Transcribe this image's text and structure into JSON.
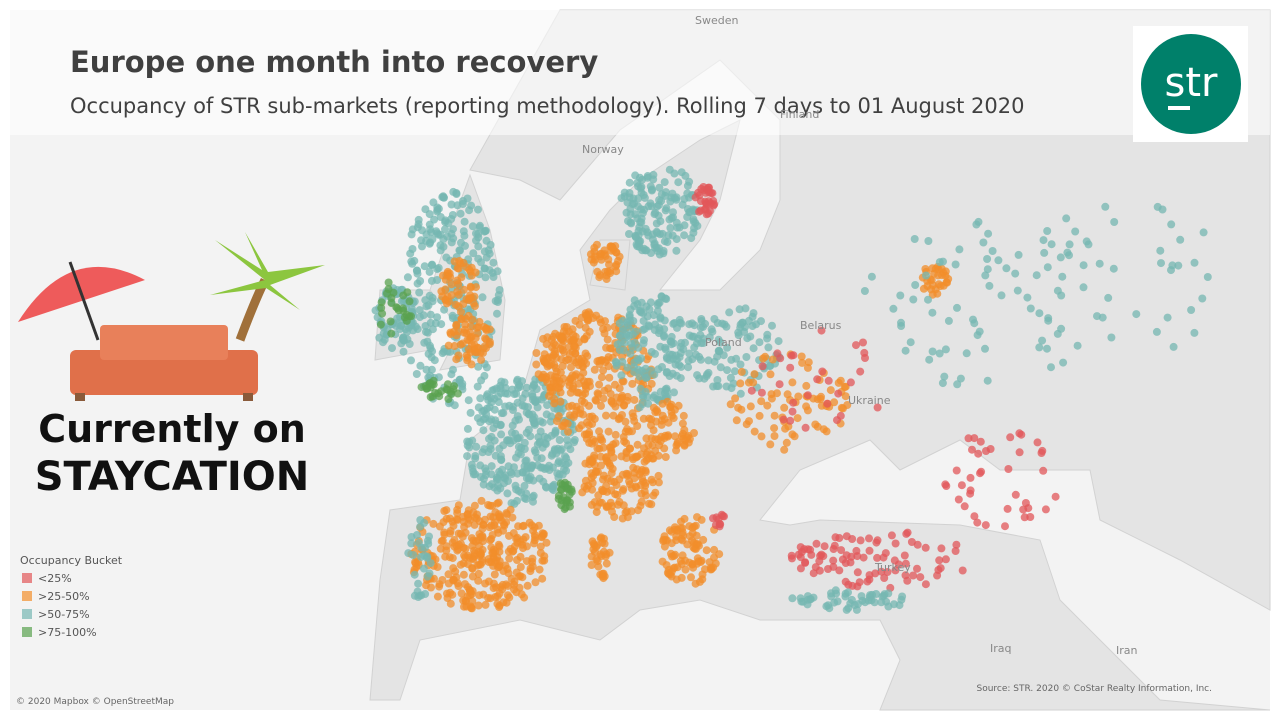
{
  "header": {
    "title": "Europe one month into recovery",
    "subtitle": "Occupancy of STR sub-markets (reporting methodology). Rolling 7 days to 01 August 2020"
  },
  "logo": "str",
  "banner": {
    "line1": "Currently on",
    "line2": "STAYCATION"
  },
  "legend": {
    "title": "Occupancy Bucket",
    "items": [
      {
        "label": "<25%",
        "color": "#e15759"
      },
      {
        "label": ">25-50%",
        "color": "#f28e2b"
      },
      {
        "label": ">50-75%",
        "color": "#76b7b2"
      },
      {
        "label": ">75-100%",
        "color": "#59a14f"
      }
    ]
  },
  "map_labels": [
    "Sweden",
    "Finland",
    "Norway",
    "Belarus",
    "Poland",
    "Ukraine",
    "Turkey",
    "Iraq",
    "Iran"
  ],
  "credits": {
    "left": "© 2020 Mapbox © OpenStreetMap",
    "right": "Source: STR. 2020 © CoStar Realty Information, Inc."
  }
}
